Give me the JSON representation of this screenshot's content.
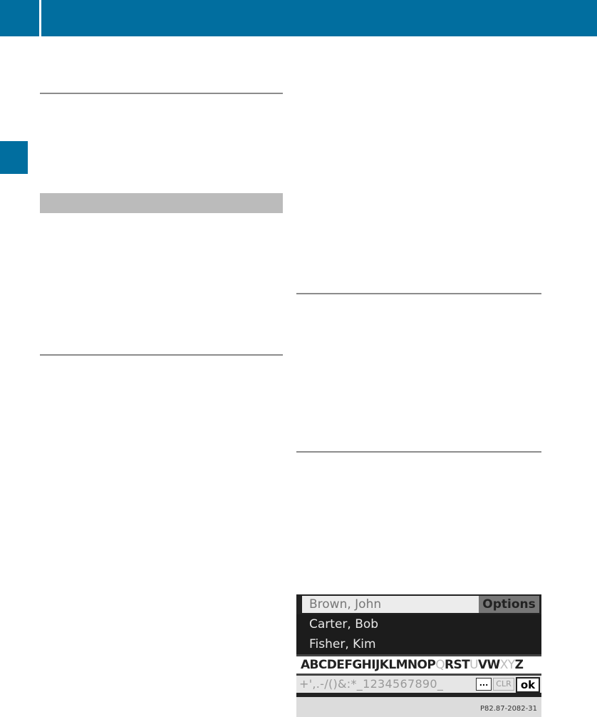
{
  "colors": {
    "accent": "#016e9f",
    "section_bar": "#bbbbbb"
  },
  "screen": {
    "input_value": "Brown, John",
    "options_label": "Options",
    "list": [
      "Carter, Bob",
      "Fisher, Kim"
    ],
    "alphabet": [
      {
        "c": "ABCDEFGHIJKLMNOP",
        "on": true
      },
      {
        "c": "Q",
        "on": false
      },
      {
        "c": "RST",
        "on": true
      },
      {
        "c": "U",
        "on": false
      },
      {
        "c": "VW",
        "on": true
      },
      {
        "c": "XY",
        "on": false
      },
      {
        "c": "Z",
        "on": true
      }
    ],
    "symbols": "+',.-/()&:*_1234567890_",
    "more_label": "...",
    "clr_label": "CLR",
    "ok_label": "ok",
    "figure_code": "P82.87-2082-31"
  }
}
